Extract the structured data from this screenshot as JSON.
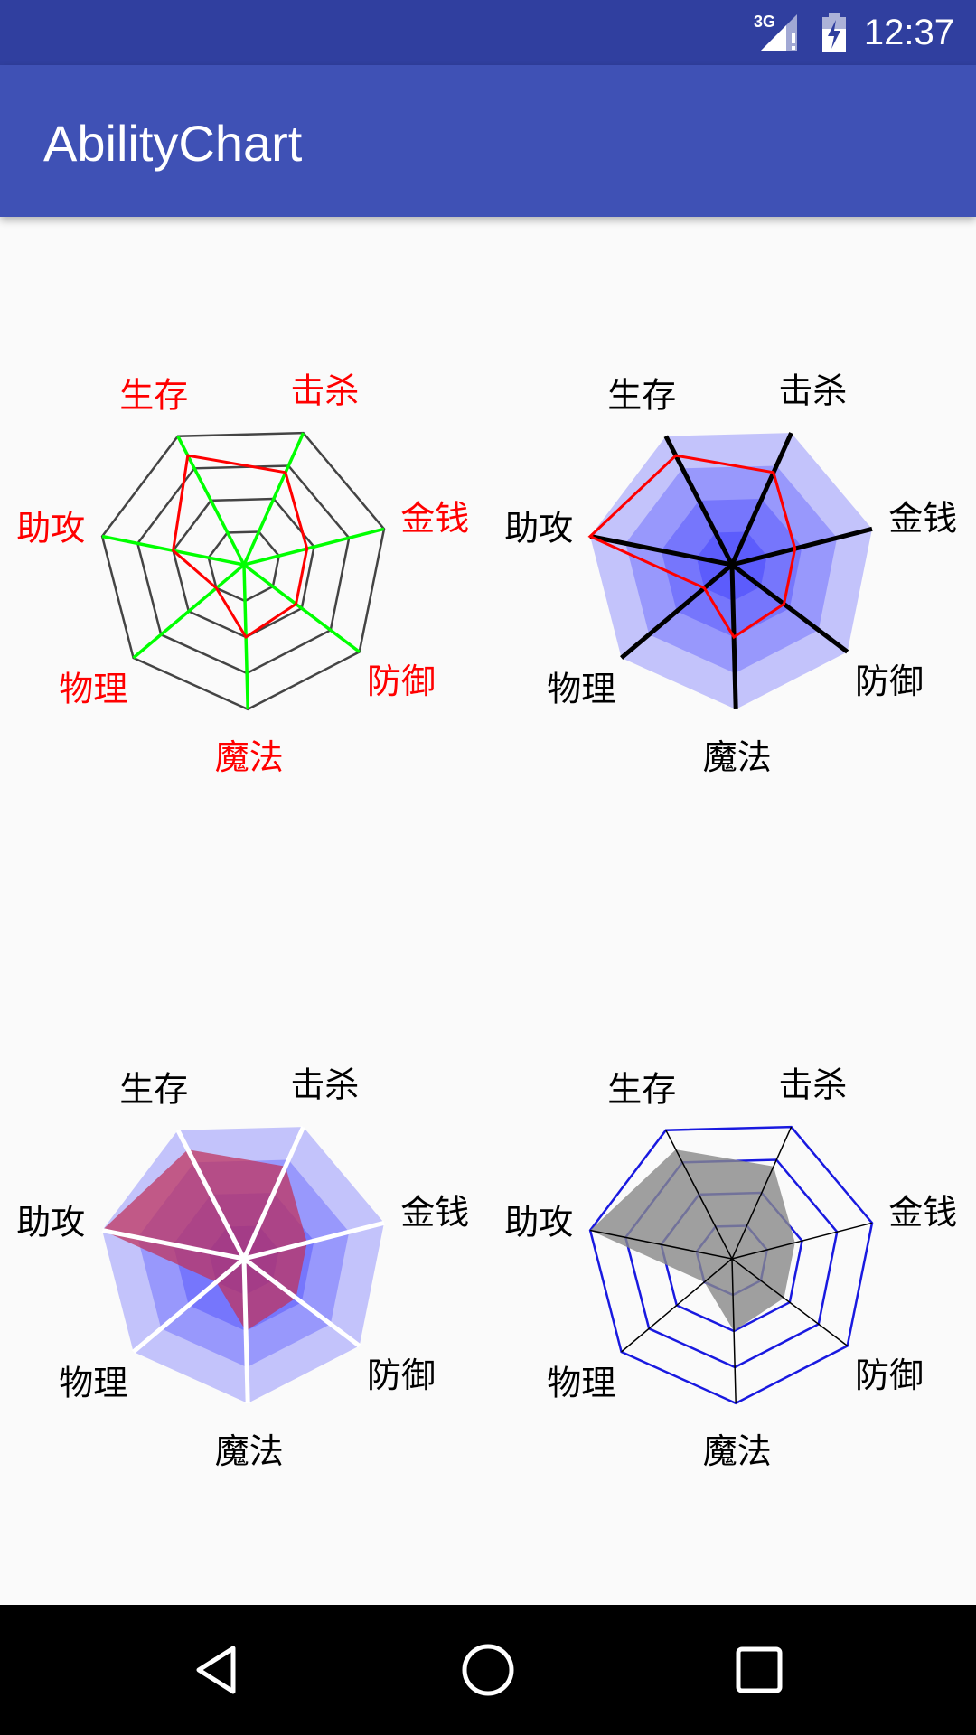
{
  "status_bar": {
    "network": "3G",
    "time": "12:37",
    "icons": [
      "signal-3g-icon",
      "battery-charging-icon"
    ]
  },
  "app_bar": {
    "title": "AbilityChart"
  },
  "chart_data": [
    {
      "type": "radar",
      "axes": [
        "击杀",
        "金钱",
        "防御",
        "魔法",
        "物理",
        "助攻",
        "生存"
      ],
      "levels": 4,
      "max": 100,
      "series": [
        {
          "values": [
            70,
            45,
            45,
            50,
            25,
            50,
            85
          ],
          "color": "#ff0000",
          "fill": "none"
        }
      ],
      "label_color": "#ff0000",
      "grid_color": "#444444",
      "spoke_color": "#00ff00"
    },
    {
      "type": "radar",
      "axes": [
        "击杀",
        "金钱",
        "防御",
        "魔法",
        "物理",
        "助攻",
        "生存"
      ],
      "levels": 4,
      "max": 100,
      "series": [
        {
          "values": [
            70,
            45,
            45,
            50,
            25,
            100,
            85
          ],
          "color": "#ff0000",
          "fill": "none"
        }
      ],
      "label_color": "#000000",
      "band_color": "#0000ff",
      "spoke_color": "#000000"
    },
    {
      "type": "radar",
      "axes": [
        "击杀",
        "金钱",
        "防御",
        "魔法",
        "物理",
        "助攻",
        "生存"
      ],
      "levels": 4,
      "max": 100,
      "series": [
        {
          "values": [
            70,
            45,
            45,
            50,
            25,
            100,
            85
          ],
          "color": "#c0305a",
          "fill": "#c0305a"
        }
      ],
      "label_color": "#000000",
      "band_color": "#0000ff",
      "spoke_color": "#ffffff"
    },
    {
      "type": "radar",
      "axes": [
        "击杀",
        "金钱",
        "防御",
        "魔法",
        "物理",
        "助攻",
        "生存"
      ],
      "levels": 4,
      "max": 100,
      "series": [
        {
          "values": [
            70,
            45,
            45,
            50,
            25,
            100,
            85
          ],
          "color": "#888888",
          "fill": "#888888"
        }
      ],
      "label_color": "#000000",
      "grid_color": "#0000dd",
      "spoke_color": "#000000"
    }
  ],
  "nav_bar": {
    "back": "back-icon",
    "home": "home-icon",
    "recents": "recents-icon"
  }
}
